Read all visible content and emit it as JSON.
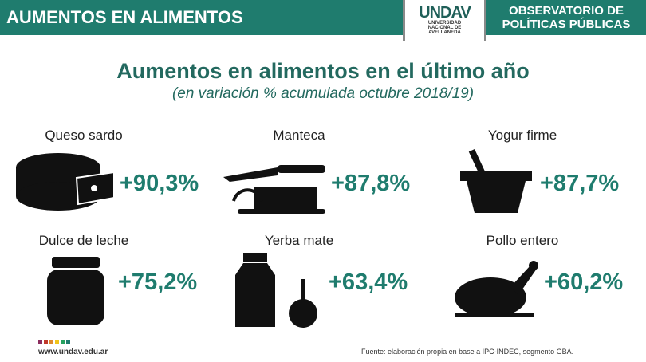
{
  "header": {
    "left_title": "AUMENTOS EN ALIMENTOS",
    "logo_mark": "UNDAV",
    "logo_sub": [
      "UNIVERSIDAD",
      "NACIONAL DE",
      "AVELLANEDA"
    ],
    "right_title_1": "OBSERVATORIO DE",
    "right_title_2": "POLÍTICAS PÚBLICAS"
  },
  "title": "Aumentos en alimentos en el último año",
  "subtitle": "(en variación % acumulada octubre 2018/19)",
  "items": [
    {
      "label": "Queso sardo",
      "value": "+90,3%",
      "icon": "cheese-icon"
    },
    {
      "label": "Manteca",
      "value": "+87,8%",
      "icon": "butter-knife-icon"
    },
    {
      "label": "Yogur firme",
      "value": "+87,7%",
      "icon": "yogurt-icon"
    },
    {
      "label": "Dulce de leche",
      "value": "+75,2%",
      "icon": "jar-icon"
    },
    {
      "label": "Yerba mate",
      "value": "+63,4%",
      "icon": "mate-icon"
    },
    {
      "label": "Pollo entero",
      "value": "+60,2%",
      "icon": "chicken-icon"
    }
  ],
  "footer": {
    "website": "www.undav.edu.ar",
    "source": "Fuente: elaboración propia en base a IPC-INDEC, segmento GBA."
  },
  "colors": {
    "brand": "#1f7c6e",
    "title": "#23695f"
  }
}
